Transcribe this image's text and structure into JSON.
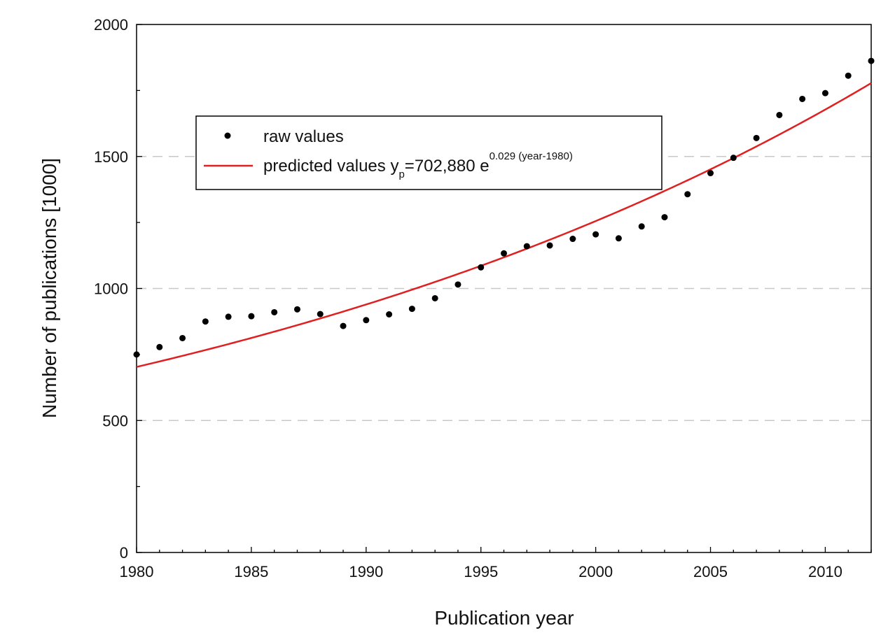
{
  "chart_data": {
    "type": "scatter",
    "xlabel": "Publication year",
    "ylabel": "Number of publications [1000]",
    "xlim": [
      1980,
      2012
    ],
    "ylim": [
      0,
      2000
    ],
    "x_ticks": [
      1980,
      1985,
      1990,
      1995,
      2000,
      2005,
      2010
    ],
    "y_ticks": [
      0,
      500,
      1000,
      1500,
      2000
    ],
    "grid": "dashed horizontal at 500, 1000, 1500",
    "legend_position": "upper-left",
    "series": [
      {
        "name": "raw values",
        "kind": "points",
        "color": "#000000",
        "x": [
          1980,
          1981,
          1982,
          1983,
          1984,
          1985,
          1986,
          1987,
          1988,
          1989,
          1990,
          1991,
          1992,
          1993,
          1994,
          1995,
          1996,
          1997,
          1998,
          1999,
          2000,
          2001,
          2002,
          2003,
          2004,
          2005,
          2006,
          2007,
          2008,
          2009,
          2010,
          2011,
          2012
        ],
        "y": [
          750,
          778,
          812,
          875,
          893,
          895,
          910,
          921,
          903,
          858,
          880,
          902,
          923,
          963,
          1015,
          1080,
          1133,
          1160,
          1163,
          1188,
          1205,
          1190,
          1235,
          1270,
          1357,
          1437,
          1495,
          1570,
          1657,
          1718,
          1740,
          1806,
          1862
        ]
      },
      {
        "name_parts": {
          "base": "predicted values y",
          "sub": "p",
          "eq": "=702,880 e",
          "sup": "0.029 (year-1980)"
        },
        "kind": "curve",
        "color": "#e02020",
        "model": {
          "form": "exponential",
          "a": 702.88,
          "b": 0.029,
          "x0": 1980
        }
      }
    ]
  }
}
